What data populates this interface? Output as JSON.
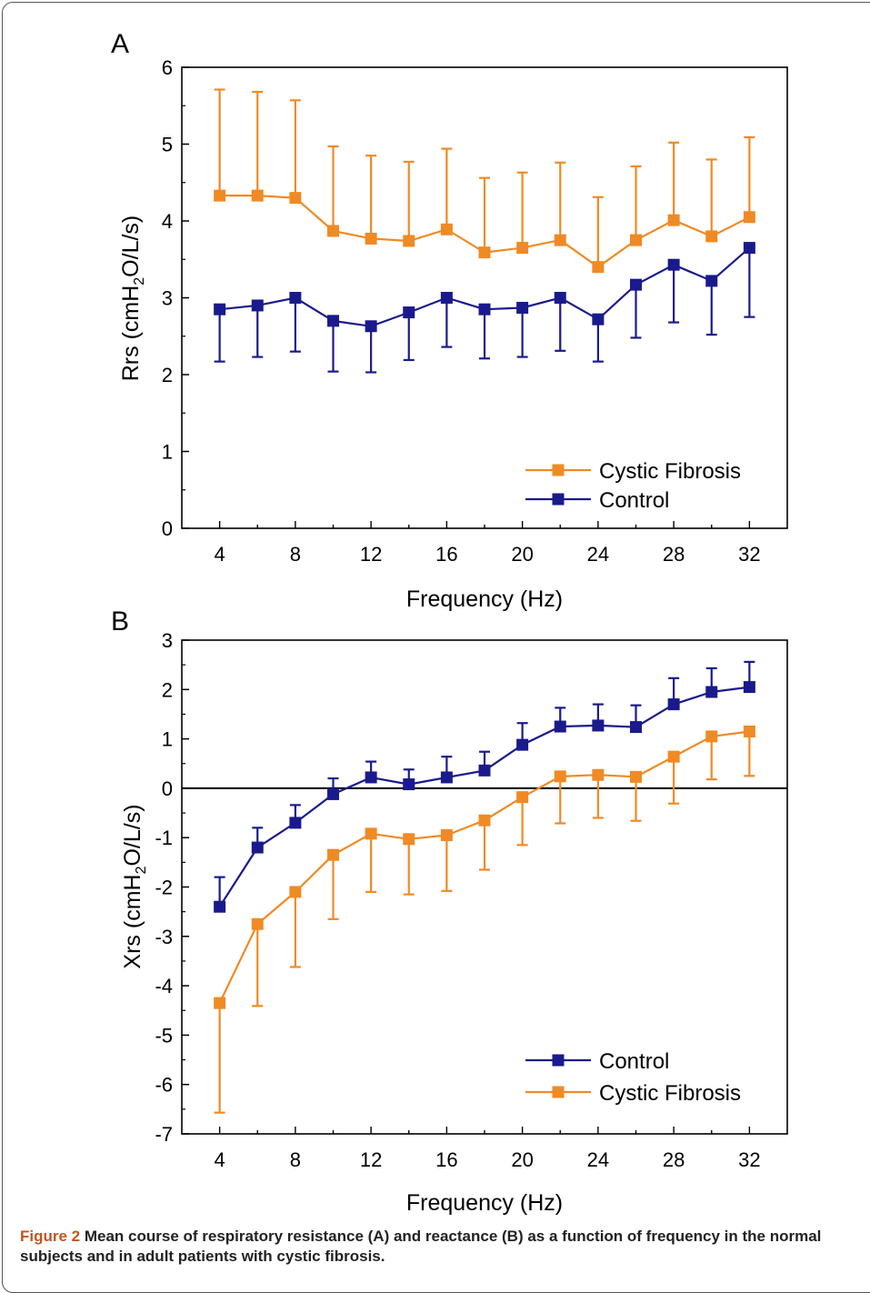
{
  "chart_data": [
    {
      "panel": "A",
      "type": "line",
      "xlabel": "Frequency (Hz)",
      "ylabel": "Rrs (cmH2O/L/s)",
      "ylabel_parts": {
        "pre": "Rrs (cmH",
        "sub": "2",
        "post": "O/L/s)"
      },
      "xlim": [
        2,
        34
      ],
      "ylim": [
        0,
        6
      ],
      "xticks": [
        4,
        8,
        12,
        16,
        20,
        24,
        28,
        32
      ],
      "yticks": [
        0,
        1,
        2,
        3,
        4,
        5,
        6
      ],
      "legend_position": "bottom-right",
      "x": [
        4,
        6,
        8,
        10,
        12,
        14,
        16,
        18,
        20,
        22,
        24,
        26,
        28,
        30,
        32
      ],
      "series": [
        {
          "name": "Cystic Fibrosis",
          "color": "#f08a24",
          "values": [
            4.33,
            4.33,
            4.3,
            3.87,
            3.77,
            3.74,
            3.89,
            3.59,
            3.65,
            3.75,
            3.4,
            3.75,
            4.01,
            3.8,
            4.05
          ],
          "error_dir": "up",
          "error": [
            1.38,
            1.35,
            1.27,
            1.1,
            1.08,
            1.03,
            1.05,
            0.97,
            0.98,
            1.01,
            0.91,
            0.96,
            1.01,
            1.0,
            1.04
          ]
        },
        {
          "name": "Control",
          "color": "#1a1a8c",
          "values": [
            2.85,
            2.9,
            3.0,
            2.7,
            2.63,
            2.81,
            3.0,
            2.85,
            2.87,
            3.0,
            2.72,
            3.17,
            3.43,
            3.22,
            3.65
          ],
          "error_dir": "down",
          "error": [
            0.68,
            0.67,
            0.7,
            0.66,
            0.6,
            0.62,
            0.64,
            0.64,
            0.64,
            0.69,
            0.55,
            0.69,
            0.75,
            0.7,
            0.9
          ]
        }
      ]
    },
    {
      "panel": "B",
      "type": "line",
      "xlabel": "Frequency (Hz)",
      "ylabel": "Xrs (cmH2O/L/s)",
      "ylabel_parts": {
        "pre": "Xrs (cmH",
        "sub": "2",
        "post": "O/L/s)"
      },
      "xlim": [
        2,
        34
      ],
      "ylim": [
        -7,
        3
      ],
      "xticks": [
        4,
        8,
        12,
        16,
        20,
        24,
        28,
        32
      ],
      "yticks": [
        -7,
        -6,
        -5,
        -4,
        -3,
        -2,
        -1,
        0,
        1,
        2,
        3
      ],
      "zero_line": true,
      "legend_position": "bottom-right",
      "x": [
        4,
        6,
        8,
        10,
        12,
        14,
        16,
        18,
        20,
        22,
        24,
        26,
        28,
        30,
        32
      ],
      "series": [
        {
          "name": "Control",
          "color": "#1a1a8c",
          "values": [
            -2.4,
            -1.2,
            -0.7,
            -0.12,
            0.22,
            0.08,
            0.22,
            0.36,
            0.88,
            1.25,
            1.27,
            1.24,
            1.7,
            1.95,
            2.05
          ],
          "error_dir": "up",
          "error": [
            0.6,
            0.4,
            0.36,
            0.32,
            0.32,
            0.3,
            0.42,
            0.38,
            0.44,
            0.38,
            0.43,
            0.44,
            0.53,
            0.48,
            0.51
          ]
        },
        {
          "name": "Cystic Fibrosis",
          "color": "#f08a24",
          "values": [
            -4.35,
            -2.75,
            -2.1,
            -1.35,
            -0.92,
            -1.03,
            -0.95,
            -0.65,
            -0.18,
            0.24,
            0.27,
            0.23,
            0.64,
            1.05,
            1.15
          ],
          "error_dir": "down",
          "error": [
            2.22,
            1.66,
            1.52,
            1.3,
            1.18,
            1.12,
            1.13,
            1.0,
            0.97,
            0.95,
            0.87,
            0.89,
            0.95,
            0.87,
            0.9
          ]
        }
      ]
    }
  ],
  "caption": {
    "lead": "Figure 2",
    "text": " Mean course of respiratory resistance (A) and reactance (B) as a function of frequency in the normal subjects and in adult patients with cystic fibrosis."
  }
}
